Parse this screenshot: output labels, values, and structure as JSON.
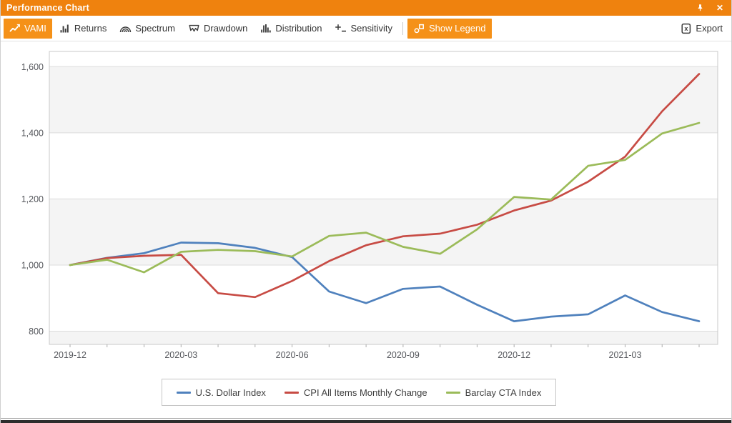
{
  "window": {
    "title": "Performance Chart",
    "close_glyph": "✕"
  },
  "toolbar": {
    "tabs": [
      {
        "label": "VAMI",
        "active": true
      },
      {
        "label": "Returns",
        "active": false
      },
      {
        "label": "Spectrum",
        "active": false
      },
      {
        "label": "Drawdown",
        "active": false
      },
      {
        "label": "Distribution",
        "active": false
      },
      {
        "label": "Sensitivity",
        "active": false
      }
    ],
    "show_legend_label": "Show Legend",
    "show_legend_active": true,
    "export_label": "Export"
  },
  "icons": [
    "trend-arrow-icon",
    "bar-chart-icon",
    "spectrum-arcs-icon",
    "drawdown-flag-icon",
    "histogram-icon",
    "sensitivity-plus-icon",
    "legend-shapes-icon",
    "excel-export-icon",
    "pin-icon",
    "close-icon"
  ],
  "colors": {
    "titlebar": "#EF820E",
    "accent": "#F59118",
    "toolbar_text": "#333333",
    "axis_text": "#55575C",
    "grid_line": "#DCDCDC",
    "plot_border": "#C9C9C9",
    "tick_mark": "#ABABAB"
  },
  "chart_data": {
    "type": "line",
    "x": [
      "2019-12",
      "2020-01",
      "2020-02",
      "2020-03",
      "2020-04",
      "2020-05",
      "2020-06",
      "2020-07",
      "2020-08",
      "2020-09",
      "2020-10",
      "2020-11",
      "2020-12",
      "2021-01",
      "2021-02",
      "2021-03",
      "2021-04",
      "2021-05"
    ],
    "x_tick_labels": [
      "2019-12",
      "2020-03",
      "2020-06",
      "2020-09",
      "2020-12",
      "2021-03"
    ],
    "series": [
      {
        "name": "U.S. Dollar Index",
        "color": "#4F81BD",
        "values": [
          1000,
          1022,
          1036,
          1068,
          1066,
          1052,
          1024,
          920,
          885,
          928,
          935,
          880,
          830,
          844,
          851,
          908,
          858,
          830
        ]
      },
      {
        "name": "CPI All Items Monthly Change",
        "color": "#C74B44",
        "values": [
          1000,
          1021,
          1028,
          1031,
          915,
          903,
          952,
          1012,
          1060,
          1087,
          1095,
          1122,
          1165,
          1195,
          1252,
          1328,
          1465,
          1578
        ]
      },
      {
        "name": "Barclay CTA Index",
        "color": "#9BBB59",
        "values": [
          1000,
          1016,
          978,
          1040,
          1046,
          1042,
          1026,
          1088,
          1098,
          1055,
          1034,
          1108,
          1206,
          1198,
          1300,
          1318,
          1398,
          1430
        ]
      }
    ],
    "ylim": [
      760,
      1646
    ],
    "yticks": [
      800,
      1000,
      1200,
      1400,
      1600
    ],
    "ytick_labels": [
      "800",
      "1,000",
      "1,200",
      "1,400",
      "1,600"
    ],
    "grid": true,
    "shaded_bands": [
      [
        760,
        800
      ],
      [
        1000,
        1200
      ],
      [
        1400,
        1600
      ]
    ],
    "band_fill": "#F4F4F4",
    "legend_position": "bottom"
  }
}
